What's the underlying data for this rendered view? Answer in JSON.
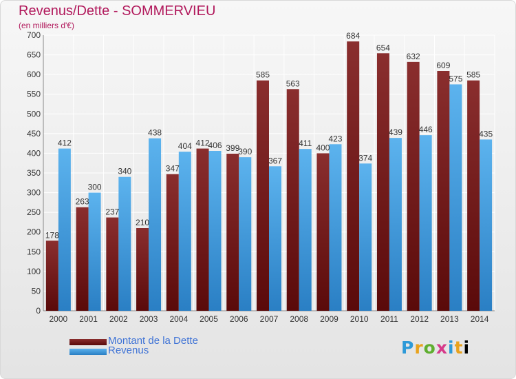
{
  "title": "Revenus/Dette - SOMMERVIEU",
  "subtitle": "(en milliers d'€)",
  "logo_text": "Proxiti",
  "chart_data": {
    "type": "bar",
    "title": "Revenus/Dette - SOMMERVIEU",
    "ylabel": "(en milliers d'€)",
    "ylim": [
      0,
      700
    ],
    "yticks": [
      0,
      50,
      100,
      150,
      200,
      250,
      300,
      350,
      400,
      450,
      500,
      550,
      600,
      650,
      700
    ],
    "grid": true,
    "legend": "bottom-left",
    "categories": [
      "2000",
      "2001",
      "2002",
      "2003",
      "2004",
      "2005",
      "2006",
      "2007",
      "2008",
      "2009",
      "2010",
      "2011",
      "2012",
      "2013",
      "2014"
    ],
    "series": [
      {
        "name": "Montant de la Dette",
        "color": "#7a1d1d",
        "values": [
          178,
          263,
          237,
          210,
          347,
          412,
          399,
          585,
          563,
          400,
          684,
          654,
          632,
          609,
          585
        ]
      },
      {
        "name": "Revenus",
        "color": "#4aa3e3",
        "values": [
          412,
          300,
          340,
          438,
          404,
          406,
          390,
          367,
          411,
          423,
          374,
          439,
          446,
          575,
          435
        ]
      }
    ]
  }
}
